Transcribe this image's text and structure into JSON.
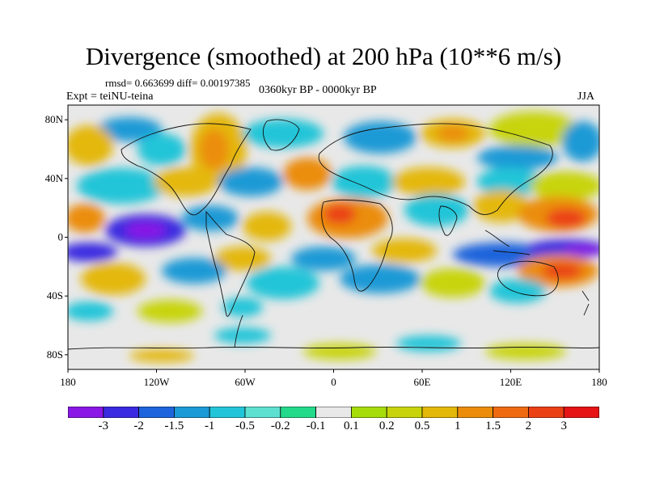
{
  "title": "Divergence (smoothed) at 200 hPa (10**6 m/s)",
  "stats": "rmsd= 0.663699 diff= 0.00197385",
  "experiment": "Expt = teiNU-teina",
  "period": "0360kyr BP - 0000kyr BP",
  "season": "JJA",
  "axes": {
    "lat_labels": [
      "80N",
      "40N",
      "0",
      "40S",
      "80S"
    ],
    "lat_values": [
      80,
      40,
      0,
      -40,
      -80
    ],
    "lon_labels": [
      "180",
      "120W",
      "60W",
      "0",
      "60E",
      "120E",
      "180"
    ],
    "lon_values": [
      -180,
      -120,
      -60,
      0,
      60,
      120,
      180
    ]
  },
  "colorbar": {
    "colors": [
      "#8a17e6",
      "#3a2ae0",
      "#1e64dc",
      "#1a9ad6",
      "#22c5d8",
      "#5ee0d0",
      "#23d98a",
      "#e8e8e8",
      "#a6dc0a",
      "#c8d40a",
      "#e4b808",
      "#eb8d0a",
      "#ee6a10",
      "#eb4014",
      "#e61414"
    ],
    "labels": [
      "-3",
      "-2",
      "-1.5",
      "-1",
      "-0.5",
      "-0.2",
      "-0.1",
      "0.1",
      "0.2",
      "0.5",
      "1",
      "1.5",
      "2",
      "3"
    ]
  },
  "field_colors": {
    "neutral": "#e8e8e8",
    "coast": "#111111"
  }
}
